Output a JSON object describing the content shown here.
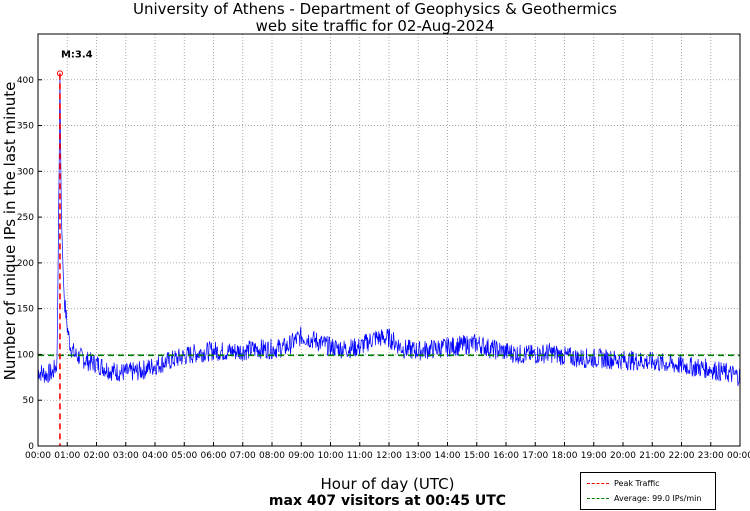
{
  "title_line1": "University of Athens - Department of Geophysics & Geothermics",
  "title_line2": "web site traffic for 02-Aug-2024",
  "xlabel": "Hour of day (UTC)",
  "xlabel_sub": "max 407 visitors at 00:45 UTC",
  "ylabel": "Number of unique IPs in the last minute",
  "peak_annotation": "M:3.4",
  "legend": {
    "peak": "Peak Traffic",
    "average": "Average: 99.0 IPs/min"
  },
  "colors": {
    "series": "#0000ff",
    "peak": "#ff0000",
    "average": "#008000"
  },
  "chart_data": {
    "type": "line",
    "title": "University of Athens - Department of Geophysics & Geothermics web site traffic for 02-Aug-2024",
    "xlabel": "Hour of day (UTC)",
    "ylabel": "Number of unique IPs in the last minute",
    "xlim": [
      0,
      24
    ],
    "ylim": [
      0,
      450
    ],
    "x_ticks": [
      "00:00",
      "01:00",
      "02:00",
      "03:00",
      "04:00",
      "05:00",
      "06:00",
      "07:00",
      "08:00",
      "09:00",
      "10:00",
      "11:00",
      "12:00",
      "13:00",
      "14:00",
      "15:00",
      "16:00",
      "17:00",
      "18:00",
      "19:00",
      "20:00",
      "21:00",
      "22:00",
      "23:00",
      "00:00"
    ],
    "y_ticks": [
      0,
      50,
      100,
      150,
      200,
      250,
      300,
      350,
      400
    ],
    "grid": true,
    "series": [
      {
        "x": [
          0,
          0.25,
          0.5,
          0.65,
          0.72,
          0.75,
          0.8,
          0.85,
          0.9,
          1.0,
          1.1,
          1.25,
          1.5,
          1.75,
          2.0,
          2.5,
          3.0,
          3.5,
          4.0,
          4.5,
          5.0,
          5.5,
          6.0,
          6.5,
          7.0,
          7.5,
          8.0,
          8.5,
          9.0,
          9.5,
          10.0,
          10.5,
          11.0,
          11.5,
          12.0,
          12.5,
          13.0,
          13.5,
          14.0,
          14.5,
          15.0,
          15.5,
          16.0,
          16.5,
          17.0,
          17.5,
          18.0,
          18.5,
          19.0,
          19.5,
          20.0,
          20.5,
          21.0,
          21.5,
          22.0,
          22.5,
          23.0,
          23.5,
          24.0
        ],
        "y": [
          82,
          78,
          80,
          90,
          300,
          407,
          250,
          200,
          160,
          130,
          110,
          100,
          96,
          92,
          90,
          82,
          80,
          82,
          88,
          93,
          98,
          102,
          104,
          103,
          104,
          106,
          106,
          108,
          120,
          115,
          108,
          106,
          108,
          118,
          118,
          106,
          104,
          106,
          108,
          110,
          112,
          106,
          103,
          100,
          100,
          102,
          98,
          96,
          96,
          95,
          94,
          93,
          92,
          90,
          88,
          86,
          84,
          80,
          76
        ]
      }
    ],
    "peak": {
      "x": 0.75,
      "y": 407,
      "label": "Peak Traffic"
    },
    "average": {
      "y": 99.0,
      "label": "Average: 99.0 IPs/min"
    },
    "legend_position": "bottom-right"
  }
}
